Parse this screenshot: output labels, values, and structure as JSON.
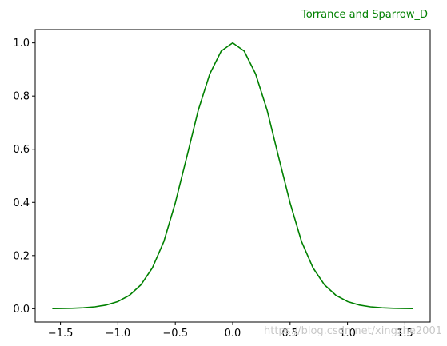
{
  "chart_data": {
    "type": "line",
    "title": "Torrance and Sparrow_D",
    "title_color": "#008000",
    "title_position": "top-right",
    "xlabel": "",
    "ylabel": "",
    "xlim": [
      -1.72,
      1.72
    ],
    "ylim": [
      -0.05,
      1.05
    ],
    "xticks": [
      -1.5,
      -1.0,
      -0.5,
      0.0,
      0.5,
      1.0,
      1.5
    ],
    "xtick_labels": [
      "−1.5",
      "−1.0",
      "−0.5",
      "0.0",
      "0.5",
      "1.0",
      "1.5"
    ],
    "yticks": [
      0.0,
      0.2,
      0.4,
      0.6,
      0.8,
      1.0
    ],
    "ytick_labels": [
      "0.0",
      "0.2",
      "0.4",
      "0.6",
      "0.8",
      "1.0"
    ],
    "grid": false,
    "series": [
      {
        "color": "#008000",
        "x": [
          -1.571,
          -1.5,
          -1.4,
          -1.3,
          -1.2,
          -1.1,
          -1.0,
          -0.9,
          -0.8,
          -0.7,
          -0.6,
          -0.5,
          -0.4,
          -0.3,
          -0.2,
          -0.1,
          0.0,
          0.1,
          0.2,
          0.3,
          0.4,
          0.5,
          0.6,
          0.7,
          0.8,
          0.9,
          1.0,
          1.1,
          1.2,
          1.3,
          1.4,
          1.5,
          1.571
        ],
        "y": [
          0.0005,
          0.0008,
          0.0017,
          0.0035,
          0.0071,
          0.0141,
          0.0271,
          0.0503,
          0.0897,
          0.1536,
          0.2525,
          0.3983,
          0.5709,
          0.7465,
          0.8828,
          0.9693,
          1.0,
          0.9693,
          0.8828,
          0.7465,
          0.5709,
          0.3983,
          0.2525,
          0.1536,
          0.0897,
          0.0503,
          0.0271,
          0.0141,
          0.0071,
          0.0035,
          0.0017,
          0.0008,
          0.0005
        ]
      }
    ]
  },
  "watermark": "https://blog.csdn.net/xingzhe2001"
}
